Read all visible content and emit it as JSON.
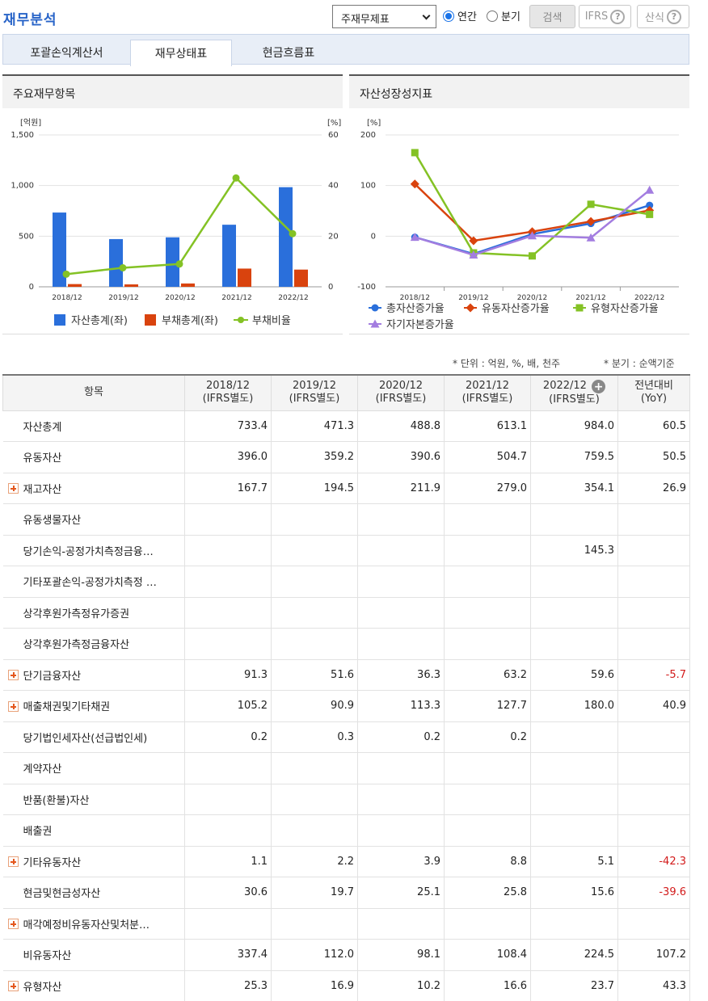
{
  "page_title": "재무분석",
  "controls": {
    "report_select": "주재무제표",
    "radio_annual": "연간",
    "radio_quarter": "분기",
    "search_button": "검색",
    "ifrs_button": "IFRS",
    "formula_button": "산식",
    "help_glyph": "?"
  },
  "tabs": [
    {
      "label": "포괄손익계산서",
      "active": false
    },
    {
      "label": "재무상태표",
      "active": true
    },
    {
      "label": "현금흐름표",
      "active": false
    }
  ],
  "chart_left": {
    "panel_title": "주요재무항목",
    "y_left_unit": "[억원]",
    "y_right_unit": "[%]"
  },
  "chart_right": {
    "panel_title": "자산성장성지표",
    "y_unit": "[%]"
  },
  "chart_data": [
    {
      "type": "bar",
      "categories": [
        "2018/12",
        "2019/12",
        "2020/12",
        "2021/12",
        "2022/12"
      ],
      "ylim": [
        0,
        1500
      ],
      "y_ticks": [
        "0",
        "500",
        "1,000",
        "1,500"
      ],
      "y2lim": [
        0,
        60
      ],
      "y2_ticks": [
        "0",
        "20",
        "40",
        "60"
      ],
      "series": [
        {
          "name": "자산총계(좌)",
          "kind": "bar",
          "axis": "left",
          "color": "#2a6fdb",
          "values": [
            733.4,
            471.3,
            488.8,
            613.1,
            984.0
          ]
        },
        {
          "name": "부채총계(좌)",
          "kind": "bar",
          "axis": "left",
          "color": "#d9430e",
          "values": [
            27,
            24,
            33,
            180,
            170
          ]
        },
        {
          "name": "부채비율",
          "kind": "line",
          "axis": "right",
          "color": "#84c225",
          "values": [
            5,
            7.5,
            9,
            43,
            21
          ]
        }
      ]
    },
    {
      "type": "line",
      "categories": [
        "2018/12",
        "2019/12",
        "2020/12",
        "2021/12",
        "2022/12"
      ],
      "ylim": [
        -100,
        200
      ],
      "y_ticks": [
        "-100",
        "0",
        "100",
        "200"
      ],
      "series": [
        {
          "name": "총자산증가율",
          "marker": "circle",
          "color": "#2a6fdb",
          "values": [
            -2,
            -35,
            4,
            25,
            61
          ]
        },
        {
          "name": "유동자산증가율",
          "marker": "diamond",
          "color": "#d9430e",
          "values": [
            103,
            -9,
            9,
            29,
            51
          ]
        },
        {
          "name": "유형자산증가율",
          "marker": "square",
          "color": "#84c225",
          "values": [
            165,
            -33,
            -39,
            63,
            43
          ]
        },
        {
          "name": "자기자본증가율",
          "marker": "triangle",
          "color": "#a37de0",
          "values": [
            -2,
            -37,
            1,
            -3,
            91
          ]
        }
      ]
    }
  ],
  "units_note": "* 단위 : 억원, %, 배, 천주",
  "quarter_note": "* 분기 : 순액기준",
  "table": {
    "item_header": "항목",
    "columns": [
      {
        "period": "2018/12",
        "basis": "(IFRS별도)"
      },
      {
        "period": "2019/12",
        "basis": "(IFRS별도)"
      },
      {
        "period": "2020/12",
        "basis": "(IFRS별도)"
      },
      {
        "period": "2021/12",
        "basis": "(IFRS별도)"
      },
      {
        "period": "2022/12",
        "basis": "(IFRS별도)"
      }
    ],
    "yoy_header": "전년대비",
    "yoy_sub": "(YoY)",
    "rows": [
      {
        "name": "자산총계",
        "expandable": false,
        "values": [
          "733.4",
          "471.3",
          "488.8",
          "613.1",
          "984.0"
        ],
        "yoy": "60.5"
      },
      {
        "name": "유동자산",
        "expandable": false,
        "values": [
          "396.0",
          "359.2",
          "390.6",
          "504.7",
          "759.5"
        ],
        "yoy": "50.5"
      },
      {
        "name": "재고자산",
        "expandable": true,
        "values": [
          "167.7",
          "194.5",
          "211.9",
          "279.0",
          "354.1"
        ],
        "yoy": "26.9"
      },
      {
        "name": "유동생물자산",
        "expandable": false,
        "values": [
          "",
          "",
          "",
          "",
          ""
        ],
        "yoy": ""
      },
      {
        "name": "당기손익-공정가치측정금융…",
        "expandable": false,
        "values": [
          "",
          "",
          "",
          "",
          "145.3"
        ],
        "yoy": ""
      },
      {
        "name": "기타포괄손익-공정가치측정 …",
        "expandable": false,
        "values": [
          "",
          "",
          "",
          "",
          ""
        ],
        "yoy": ""
      },
      {
        "name": "상각후원가측정유가증권",
        "expandable": false,
        "values": [
          "",
          "",
          "",
          "",
          ""
        ],
        "yoy": ""
      },
      {
        "name": "상각후원가측정금융자산",
        "expandable": false,
        "values": [
          "",
          "",
          "",
          "",
          ""
        ],
        "yoy": ""
      },
      {
        "name": "단기금융자산",
        "expandable": true,
        "values": [
          "91.3",
          "51.6",
          "36.3",
          "63.2",
          "59.6"
        ],
        "yoy": "-5.7"
      },
      {
        "name": "매출채권및기타채권",
        "expandable": true,
        "values": [
          "105.2",
          "90.9",
          "113.3",
          "127.7",
          "180.0"
        ],
        "yoy": "40.9"
      },
      {
        "name": "당기법인세자산(선급법인세)",
        "expandable": false,
        "values": [
          "0.2",
          "0.3",
          "0.2",
          "0.2",
          ""
        ],
        "yoy": ""
      },
      {
        "name": "계약자산",
        "expandable": false,
        "values": [
          "",
          "",
          "",
          "",
          ""
        ],
        "yoy": ""
      },
      {
        "name": "반품(환불)자산",
        "expandable": false,
        "values": [
          "",
          "",
          "",
          "",
          ""
        ],
        "yoy": ""
      },
      {
        "name": "배출권",
        "expandable": false,
        "values": [
          "",
          "",
          "",
          "",
          ""
        ],
        "yoy": ""
      },
      {
        "name": "기타유동자산",
        "expandable": true,
        "values": [
          "1.1",
          "2.2",
          "3.9",
          "8.8",
          "5.1"
        ],
        "yoy": "-42.3"
      },
      {
        "name": "현금및현금성자산",
        "expandable": false,
        "values": [
          "30.6",
          "19.7",
          "25.1",
          "25.8",
          "15.6"
        ],
        "yoy": "-39.6"
      },
      {
        "name": "매각예정비유동자산및처분…",
        "expandable": true,
        "values": [
          "",
          "",
          "",
          "",
          ""
        ],
        "yoy": ""
      },
      {
        "name": "비유동자산",
        "expandable": false,
        "values": [
          "337.4",
          "112.0",
          "98.1",
          "108.4",
          "224.5"
        ],
        "yoy": "107.2"
      },
      {
        "name": "유형자산",
        "expandable": true,
        "values": [
          "25.3",
          "16.9",
          "10.2",
          "16.6",
          "23.7"
        ],
        "yoy": "43.3"
      }
    ]
  }
}
